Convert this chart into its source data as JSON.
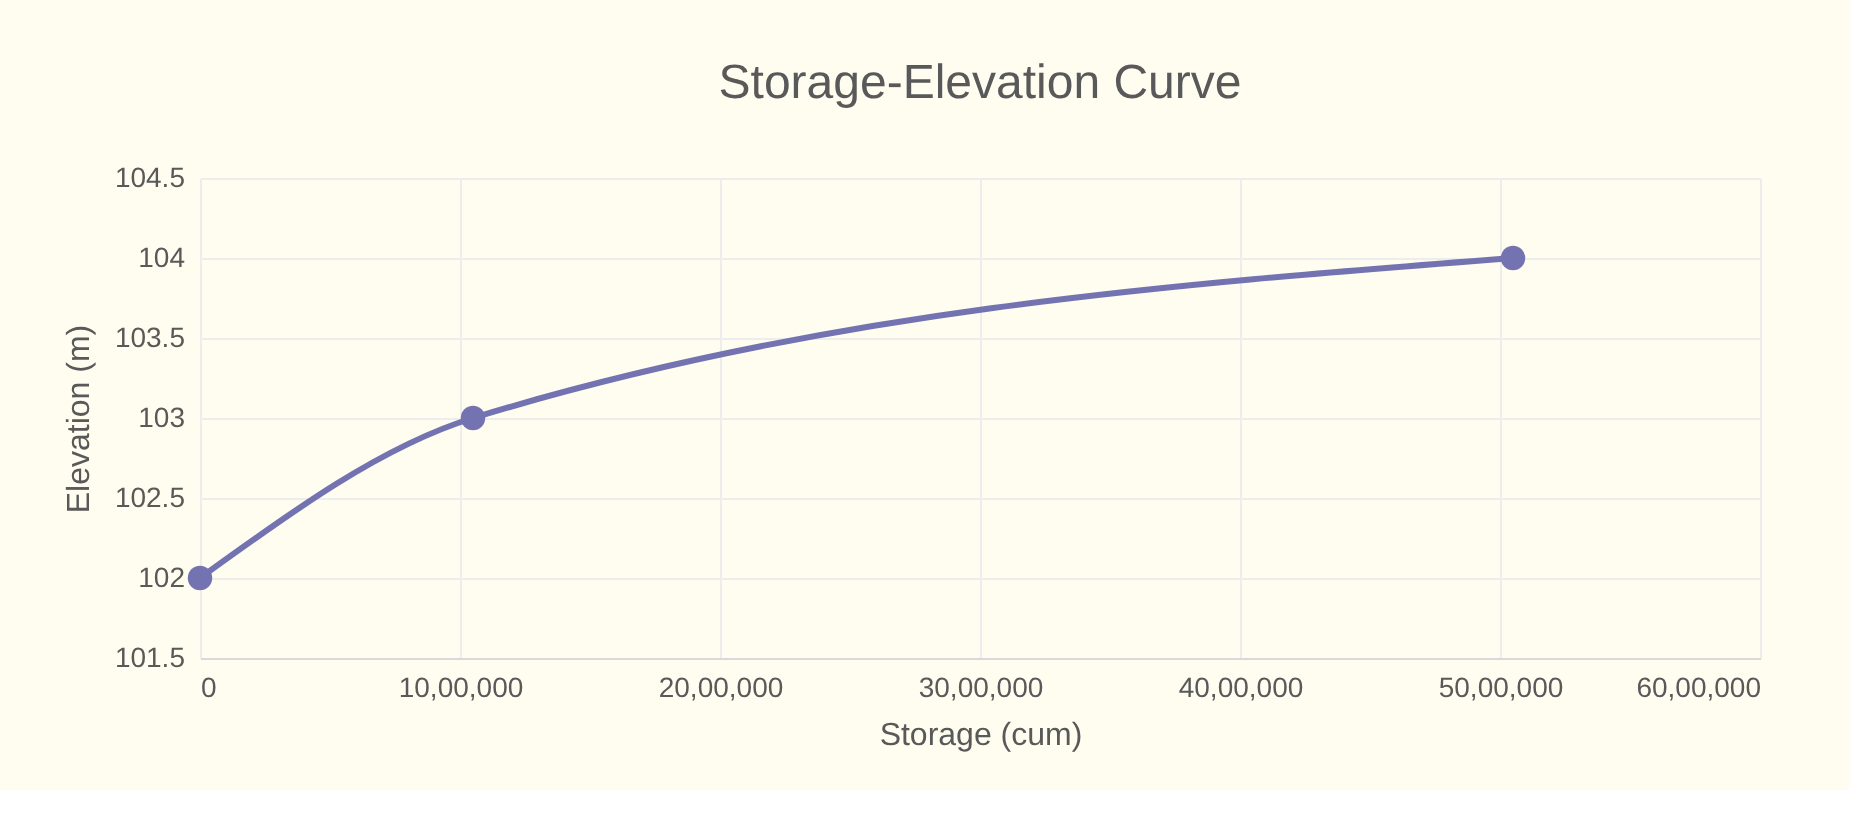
{
  "chart_data": {
    "type": "line",
    "title": "Storage-Elevation Curve",
    "xlabel": "Storage (cum)",
    "ylabel": "Elevation (m)",
    "x": [
      0,
      1050000,
      5050000
    ],
    "series": [
      {
        "color": "#7473b2",
        "values": [
          102,
          103,
          104
        ]
      }
    ],
    "xlim": [
      0,
      6000000
    ],
    "xticks": [
      0,
      {
        "value": 1000000,
        "label": "10,00,000"
      },
      {
        "value": 2000000,
        "label": "20,00,000"
      },
      {
        "value": 3000000,
        "label": "30,00,000"
      },
      {
        "value": 4000000,
        "label": "40,00,000"
      },
      {
        "value": 5000000,
        "label": "50,00,000"
      },
      {
        "value": 6000000,
        "label": "60,00,000"
      }
    ],
    "ylim": [
      101.5,
      104.5
    ],
    "yticks": [
      101.5,
      102,
      102.5,
      103,
      103.5,
      104,
      104.5
    ],
    "grid": true,
    "marker": "circle",
    "line_style": "solid"
  }
}
